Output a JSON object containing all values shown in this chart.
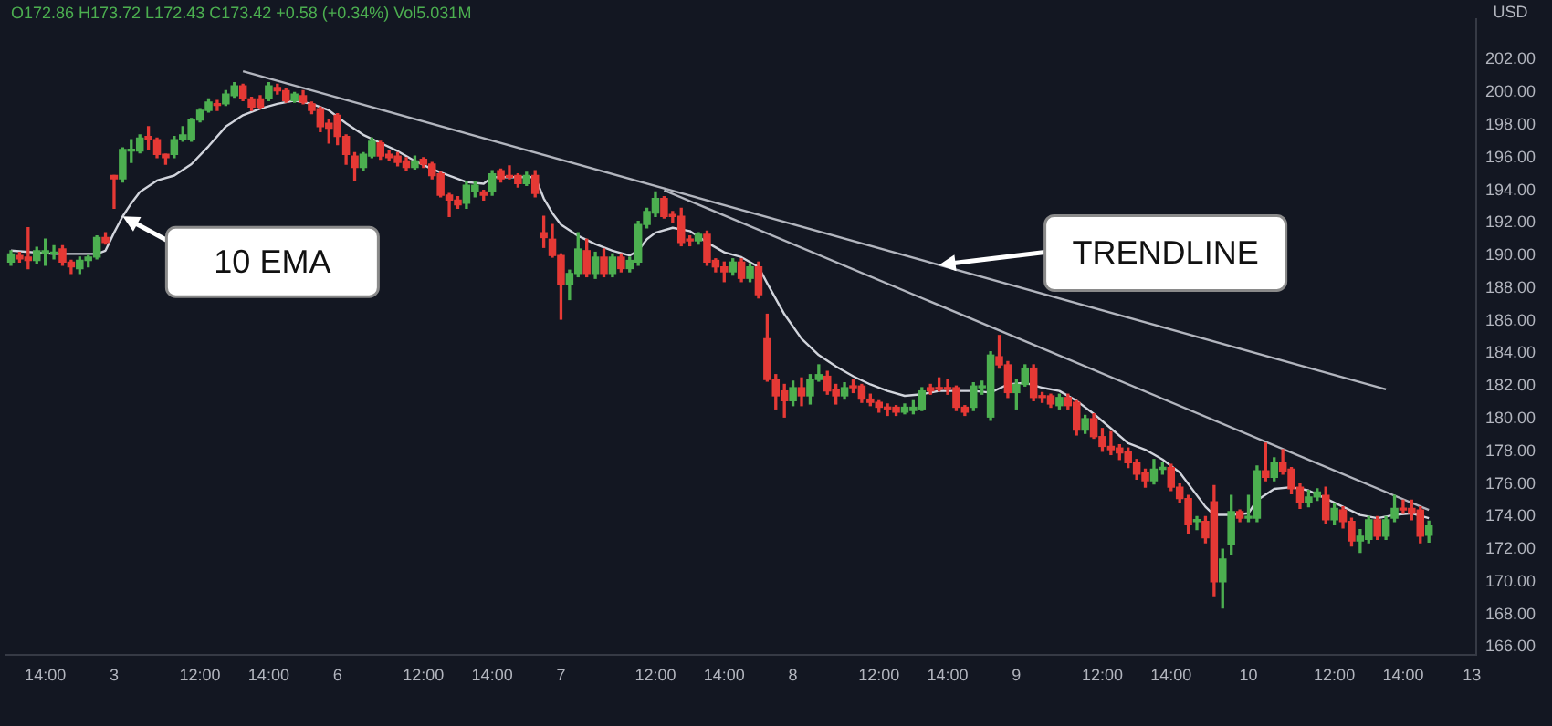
{
  "chart_data": {
    "type": "candlestick",
    "subtitle": "O172.86 H173.72 L172.43 C173.42 +0.58 (+0.34%) Vol5.031M",
    "ylabel": "USD",
    "marker": "none",
    "ylim": [
      165.5,
      204.5
    ],
    "yticks": [
      {
        "value": 166,
        "label": "166.00"
      },
      {
        "value": 168,
        "label": "168.00"
      },
      {
        "value": 170,
        "label": "170.00"
      },
      {
        "value": 172,
        "label": "172.00"
      },
      {
        "value": 174,
        "label": "174.00"
      },
      {
        "value": 176,
        "label": "176.00"
      },
      {
        "value": 178,
        "label": "178.00"
      },
      {
        "value": 180,
        "label": "180.00"
      },
      {
        "value": 182,
        "label": "182.00"
      },
      {
        "value": 184,
        "label": "184.00"
      },
      {
        "value": 186,
        "label": "186.00"
      },
      {
        "value": 188,
        "label": "188.00"
      },
      {
        "value": 190,
        "label": "190.00"
      },
      {
        "value": 192,
        "label": "192.00"
      },
      {
        "value": 194,
        "label": "194.00"
      },
      {
        "value": 196,
        "label": "196.00"
      },
      {
        "value": 198,
        "label": "198.00"
      },
      {
        "value": 200,
        "label": "200.00"
      },
      {
        "value": 202,
        "label": "202.00"
      }
    ],
    "categories": [
      null,
      null,
      null,
      null,
      "14:00",
      null,
      null,
      null,
      null,
      null,
      null,
      null,
      "3",
      null,
      null,
      null,
      null,
      null,
      null,
      null,
      null,
      null,
      "12:00",
      null,
      null,
      null,
      null,
      null,
      null,
      null,
      "14:00",
      null,
      null,
      null,
      null,
      null,
      null,
      null,
      "6",
      null,
      null,
      null,
      null,
      null,
      null,
      null,
      null,
      null,
      "12:00",
      null,
      null,
      null,
      null,
      null,
      null,
      null,
      "14:00",
      null,
      null,
      null,
      null,
      null,
      null,
      null,
      "7",
      null,
      null,
      null,
      null,
      null,
      null,
      null,
      null,
      null,
      null,
      "12:00",
      null,
      null,
      null,
      null,
      null,
      null,
      null,
      "14:00",
      null,
      null,
      null,
      null,
      null,
      null,
      null,
      "8",
      null,
      null,
      null,
      null,
      null,
      null,
      null,
      null,
      null,
      "12:00",
      null,
      null,
      null,
      null,
      null,
      null,
      null,
      "14:00",
      null,
      null,
      null,
      null,
      null,
      null,
      null,
      "9",
      null,
      null,
      null,
      null,
      null,
      null,
      null,
      null,
      null,
      "12:00",
      null,
      null,
      null,
      null,
      null,
      null,
      null,
      "14:00",
      null,
      null,
      null,
      null,
      null,
      null,
      null,
      null,
      "10",
      null,
      null,
      null,
      null,
      null,
      null,
      null,
      null,
      null,
      "12:00",
      null,
      null,
      null,
      null,
      null,
      null,
      null,
      "14:00",
      null,
      null,
      null,
      null,
      null,
      null,
      null,
      "13"
    ],
    "ohlc": [
      [
        189.6,
        190.3,
        189.4,
        190.1
      ],
      [
        190.0,
        190.2,
        189.6,
        189.8
      ],
      [
        189.9,
        191.7,
        189.2,
        189.7
      ],
      [
        189.7,
        190.5,
        189.5,
        190.3
      ],
      [
        190.1,
        191.0,
        189.4,
        190.3
      ],
      [
        190.1,
        190.6,
        189.8,
        190.2
      ],
      [
        190.4,
        190.6,
        189.4,
        189.6
      ],
      [
        189.6,
        189.7,
        188.9,
        189.3
      ],
      [
        189.2,
        189.9,
        188.9,
        189.7
      ],
      [
        189.7,
        190.0,
        189.3,
        189.9
      ],
      [
        189.9,
        191.2,
        189.8,
        191.1
      ],
      [
        191.1,
        191.4,
        190.7,
        190.8
      ],
      [
        194.9,
        194.9,
        192.9,
        194.7
      ],
      [
        194.7,
        196.6,
        194.5,
        196.5
      ],
      [
        196.4,
        197.1,
        195.7,
        196.5
      ],
      [
        196.4,
        197.4,
        196.3,
        197.2
      ],
      [
        197.3,
        197.9,
        196.5,
        197.1
      ],
      [
        197.1,
        197.2,
        196.0,
        196.2
      ],
      [
        196.2,
        196.2,
        195.6,
        196.0
      ],
      [
        196.2,
        197.3,
        196.0,
        197.1
      ],
      [
        197.1,
        197.9,
        197.0,
        197.4
      ],
      [
        197.1,
        198.4,
        197.0,
        198.3
      ],
      [
        198.3,
        199.0,
        198.2,
        198.9
      ],
      [
        198.9,
        199.6,
        198.8,
        199.4
      ],
      [
        199.3,
        199.5,
        198.9,
        199.2
      ],
      [
        199.3,
        200.1,
        199.2,
        199.9
      ],
      [
        199.8,
        200.6,
        199.7,
        200.4
      ],
      [
        200.4,
        200.5,
        199.5,
        199.6
      ],
      [
        199.6,
        199.7,
        198.9,
        199.1
      ],
      [
        199.6,
        199.8,
        199.0,
        199.1
      ],
      [
        199.6,
        200.6,
        199.5,
        200.4
      ],
      [
        200.3,
        200.5,
        199.9,
        200.1
      ],
      [
        200.1,
        200.2,
        199.4,
        199.5
      ],
      [
        199.5,
        200.0,
        199.4,
        199.9
      ],
      [
        199.8,
        200.1,
        199.3,
        199.4
      ],
      [
        199.3,
        199.4,
        198.7,
        198.9
      ],
      [
        199.0,
        199.1,
        197.6,
        197.9
      ],
      [
        198.1,
        198.3,
        196.9,
        197.8
      ],
      [
        198.6,
        198.7,
        196.8,
        197.3
      ],
      [
        197.3,
        197.4,
        195.6,
        196.2
      ],
      [
        196.1,
        196.3,
        194.6,
        195.4
      ],
      [
        195.4,
        196.3,
        195.2,
        196.2
      ],
      [
        196.1,
        197.2,
        196.0,
        197.0
      ],
      [
        196.9,
        197.0,
        195.9,
        196.1
      ],
      [
        196.2,
        196.4,
        195.8,
        196.0
      ],
      [
        196.1,
        196.3,
        195.5,
        195.7
      ],
      [
        195.8,
        196.0,
        195.2,
        195.4
      ],
      [
        195.4,
        196.1,
        195.3,
        195.8
      ],
      [
        195.9,
        196.0,
        195.4,
        195.6
      ],
      [
        195.6,
        195.7,
        194.7,
        194.9
      ],
      [
        195.0,
        195.1,
        193.6,
        193.7
      ],
      [
        193.7,
        193.8,
        192.4,
        193.4
      ],
      [
        193.4,
        193.6,
        192.9,
        193.1
      ],
      [
        193.2,
        194.5,
        192.9,
        194.3
      ],
      [
        193.9,
        194.5,
        193.6,
        194.3
      ],
      [
        193.9,
        194.0,
        193.4,
        193.7
      ],
      [
        193.9,
        195.2,
        193.7,
        195.0
      ],
      [
        195.2,
        195.3,
        194.5,
        194.7
      ],
      [
        194.9,
        195.5,
        194.7,
        194.8
      ],
      [
        194.9,
        195.0,
        194.2,
        194.4
      ],
      [
        194.4,
        195.1,
        194.3,
        194.9
      ],
      [
        194.9,
        195.2,
        193.6,
        193.8
      ],
      [
        191.4,
        192.4,
        190.5,
        191.1
      ],
      [
        191.0,
        191.9,
        189.9,
        190.0
      ],
      [
        190.0,
        190.1,
        186.1,
        188.2
      ],
      [
        188.2,
        189.1,
        187.3,
        188.9
      ],
      [
        188.9,
        191.4,
        188.7,
        190.4
      ],
      [
        190.3,
        191.0,
        188.7,
        188.9
      ],
      [
        188.9,
        190.2,
        188.6,
        189.9
      ],
      [
        189.9,
        190.4,
        188.7,
        188.9
      ],
      [
        188.9,
        190.1,
        188.7,
        189.9
      ],
      [
        189.9,
        190.1,
        189.0,
        189.2
      ],
      [
        189.2,
        189.9,
        189.0,
        189.7
      ],
      [
        189.6,
        192.1,
        189.4,
        191.9
      ],
      [
        191.9,
        192.9,
        191.7,
        192.7
      ],
      [
        192.6,
        193.9,
        192.4,
        193.5
      ],
      [
        193.5,
        193.6,
        192.3,
        192.4
      ],
      [
        192.5,
        192.7,
        192.0,
        192.4
      ],
      [
        192.4,
        192.9,
        190.6,
        190.8
      ],
      [
        191.0,
        191.2,
        190.6,
        190.9
      ],
      [
        190.9,
        191.4,
        190.7,
        191.3
      ],
      [
        191.3,
        191.5,
        189.4,
        189.6
      ],
      [
        189.7,
        189.8,
        189.0,
        189.3
      ],
      [
        189.3,
        189.6,
        188.4,
        189.0
      ],
      [
        189.0,
        189.8,
        188.8,
        189.6
      ],
      [
        189.6,
        189.8,
        188.4,
        188.6
      ],
      [
        188.6,
        189.5,
        188.4,
        189.3
      ],
      [
        189.3,
        189.6,
        187.4,
        187.6
      ],
      [
        184.9,
        186.4,
        182.3,
        182.4
      ],
      [
        182.4,
        182.7,
        180.6,
        181.4
      ],
      [
        181.7,
        182.1,
        180.1,
        181.1
      ],
      [
        181.1,
        182.3,
        180.8,
        181.9
      ],
      [
        181.9,
        182.5,
        180.8,
        181.4
      ],
      [
        181.4,
        182.7,
        180.9,
        182.4
      ],
      [
        182.4,
        183.3,
        182.3,
        182.7
      ],
      [
        182.6,
        182.9,
        181.5,
        181.7
      ],
      [
        181.8,
        182.1,
        180.9,
        181.4
      ],
      [
        181.4,
        182.2,
        181.2,
        181.9
      ],
      [
        182.0,
        182.4,
        181.6,
        181.9
      ],
      [
        182.0,
        182.1,
        181.0,
        181.2
      ],
      [
        181.2,
        181.5,
        180.8,
        181.0
      ],
      [
        181.0,
        181.1,
        180.4,
        180.7
      ],
      [
        180.7,
        180.9,
        180.2,
        180.6
      ],
      [
        180.7,
        180.8,
        180.2,
        180.4
      ],
      [
        180.4,
        180.9,
        180.3,
        180.7
      ],
      [
        180.5,
        181.1,
        180.3,
        180.7
      ],
      [
        180.6,
        181.9,
        180.5,
        181.7
      ],
      [
        181.9,
        182.1,
        181.5,
        181.7
      ],
      [
        181.9,
        182.5,
        181.7,
        181.8
      ],
      [
        181.9,
        182.4,
        181.5,
        181.8
      ],
      [
        181.9,
        182.0,
        180.5,
        180.7
      ],
      [
        180.7,
        180.8,
        180.2,
        180.4
      ],
      [
        180.7,
        182.2,
        180.5,
        182.0
      ],
      [
        181.9,
        182.3,
        181.5,
        181.9
      ],
      [
        180.1,
        184.1,
        179.9,
        183.9
      ],
      [
        183.8,
        185.1,
        183.1,
        183.3
      ],
      [
        183.3,
        183.5,
        181.3,
        181.6
      ],
      [
        181.6,
        182.4,
        180.6,
        182.1
      ],
      [
        182.1,
        183.3,
        182.0,
        183.1
      ],
      [
        183.1,
        183.3,
        181.1,
        181.3
      ],
      [
        181.4,
        181.6,
        181.0,
        181.3
      ],
      [
        181.4,
        181.5,
        180.7,
        180.9
      ],
      [
        180.8,
        181.5,
        180.6,
        181.3
      ],
      [
        181.3,
        181.5,
        180.6,
        180.8
      ],
      [
        181.0,
        181.1,
        179.0,
        179.3
      ],
      [
        179.3,
        180.2,
        179.1,
        180.0
      ],
      [
        180.0,
        180.3,
        178.8,
        178.9
      ],
      [
        178.9,
        179.4,
        178.0,
        178.3
      ],
      [
        178.3,
        179.2,
        177.8,
        178.1
      ],
      [
        178.2,
        178.4,
        177.5,
        177.9
      ],
      [
        178.0,
        178.2,
        177.0,
        177.3
      ],
      [
        177.3,
        177.5,
        176.3,
        176.6
      ],
      [
        176.7,
        176.9,
        175.8,
        176.2
      ],
      [
        176.2,
        177.5,
        176.0,
        176.9
      ],
      [
        176.9,
        177.3,
        176.6,
        176.9
      ],
      [
        177.0,
        177.2,
        175.6,
        175.8
      ],
      [
        175.8,
        176.0,
        174.9,
        175.1
      ],
      [
        175.1,
        175.3,
        173.0,
        173.5
      ],
      [
        173.7,
        174.0,
        173.2,
        173.7
      ],
      [
        173.7,
        174.0,
        172.4,
        172.7
      ],
      [
        174.9,
        175.9,
        169.1,
        170.0
      ],
      [
        170.0,
        172.0,
        168.4,
        171.4
      ],
      [
        172.3,
        175.3,
        171.7,
        174.3
      ],
      [
        174.3,
        174.4,
        173.7,
        173.9
      ],
      [
        173.9,
        175.3,
        173.7,
        173.9
      ],
      [
        173.9,
        177.1,
        173.7,
        176.8
      ],
      [
        176.8,
        178.5,
        176.2,
        176.4
      ],
      [
        176.4,
        177.6,
        176.2,
        177.3
      ],
      [
        177.3,
        178.1,
        176.6,
        176.8
      ],
      [
        176.9,
        177.0,
        175.4,
        175.7
      ],
      [
        175.8,
        176.0,
        174.5,
        174.9
      ],
      [
        174.9,
        175.6,
        174.6,
        175.2
      ],
      [
        175.2,
        175.7,
        175.0,
        175.5
      ],
      [
        175.3,
        175.8,
        173.6,
        173.8
      ],
      [
        173.8,
        174.8,
        173.5,
        174.5
      ],
      [
        174.4,
        174.6,
        173.3,
        173.7
      ],
      [
        173.7,
        173.9,
        172.2,
        172.5
      ],
      [
        172.5,
        173.2,
        171.8,
        172.8
      ],
      [
        172.6,
        174.0,
        172.4,
        173.8
      ],
      [
        173.8,
        174.0,
        172.6,
        172.8
      ],
      [
        172.8,
        174.0,
        172.6,
        173.8
      ],
      [
        173.9,
        175.3,
        173.7,
        174.5
      ],
      [
        174.5,
        175.0,
        174.2,
        174.4
      ],
      [
        174.5,
        175.0,
        173.8,
        174.2
      ],
      [
        174.4,
        174.6,
        172.4,
        172.8
      ],
      [
        172.86,
        173.72,
        172.43,
        173.42
      ],
      null,
      null,
      null,
      null,
      null
    ],
    "colors": [
      "#4caf50",
      "#e53935",
      "#e53935",
      "#4caf50",
      "#4caf50",
      "#4caf50",
      "#e53935",
      "#e53935",
      "#4caf50",
      "#4caf50",
      "#4caf50",
      "#e53935",
      "#e53935",
      "#4caf50",
      "#4caf50",
      "#4caf50",
      "#e53935",
      "#e53935",
      "#e53935",
      "#4caf50",
      "#4caf50",
      "#4caf50",
      "#4caf50",
      "#4caf50",
      "#e53935",
      "#4caf50",
      "#4caf50",
      "#e53935",
      "#e53935",
      "#e53935",
      "#4caf50",
      "#e53935",
      "#e53935",
      "#4caf50",
      "#e53935",
      "#e53935",
      "#e53935",
      "#e53935",
      "#e53935",
      "#e53935",
      "#e53935",
      "#4caf50",
      "#4caf50",
      "#e53935",
      "#e53935",
      "#e53935",
      "#e53935",
      "#4caf50",
      "#e53935",
      "#e53935",
      "#e53935",
      "#e53935",
      "#e53935",
      "#4caf50",
      "#4caf50",
      "#e53935",
      "#4caf50",
      "#e53935",
      "#e53935",
      "#e53935",
      "#4caf50",
      "#e53935",
      "#e53935",
      "#e53935",
      "#e53935",
      "#4caf50",
      "#4caf50",
      "#e53935",
      "#4caf50",
      "#e53935",
      "#4caf50",
      "#e53935",
      "#4caf50",
      "#4caf50",
      "#4caf50",
      "#4caf50",
      "#e53935",
      "#e53935",
      "#e53935",
      "#e53935",
      "#4caf50",
      "#e53935",
      "#e53935",
      "#e53935",
      "#4caf50",
      "#e53935",
      "#4caf50",
      "#e53935",
      "#e53935",
      "#e53935",
      "#e53935",
      "#4caf50",
      "#e53935",
      "#4caf50",
      "#4caf50",
      "#e53935",
      "#e53935",
      "#4caf50",
      "#e53935",
      "#e53935",
      "#e53935",
      "#e53935",
      "#e53935",
      "#e53935",
      "#4caf50",
      "#4caf50",
      "#4caf50",
      "#e53935",
      "#e53935",
      "#e53935",
      "#e53935",
      "#e53935",
      "#4caf50",
      "#4caf50",
      "#4caf50",
      "#e53935",
      "#e53935",
      "#4caf50",
      "#4caf50",
      "#e53935",
      "#e53935",
      "#e53935",
      "#4caf50",
      "#e53935",
      "#e53935",
      "#4caf50",
      "#e53935",
      "#e53935",
      "#e53935",
      "#e53935",
      "#e53935",
      "#e53935",
      "#e53935",
      "#4caf50",
      "#4caf50",
      "#e53935",
      "#e53935",
      "#e53935",
      "#4caf50",
      "#e53935",
      "#e53935",
      "#4caf50",
      "#4caf50",
      "#e53935",
      "#4caf50",
      "#4caf50",
      "#e53935",
      "#4caf50",
      "#e53935",
      "#e53935",
      "#e53935",
      "#4caf50",
      "#4caf50",
      "#e53935",
      "#4caf50",
      "#e53935",
      "#e53935",
      "#4caf50",
      "#4caf50",
      "#e53935",
      "#4caf50",
      "#4caf50",
      "#e53935",
      "#e53935",
      "#e53935",
      "#4caf50",
      null,
      null,
      null,
      null,
      null
    ],
    "series": [
      {
        "type": "line",
        "name": "10 EMA",
        "color": "#d1d4dc",
        "values": [
          190.3,
          null,
          null,
          null,
          null,
          190.1,
          null,
          null,
          null,
          null,
          190.1,
          190.3,
          191.4,
          192.4,
          193.2,
          193.9,
          null,
          194.6,
          null,
          194.9,
          null,
          195.6,
          null,
          196.7,
          null,
          197.9,
          null,
          198.6,
          null,
          199.0,
          null,
          199.3,
          null,
          199.5,
          null,
          199.3,
          null,
          198.9,
          null,
          198.1,
          null,
          197.4,
          null,
          196.9,
          null,
          196.4,
          null,
          195.8,
          null,
          195.3,
          null,
          194.9,
          null,
          194.5,
          null,
          194.4,
          194.8,
          null,
          194.8,
          null,
          null,
          194.8,
          193.5,
          192.6,
          191.9,
          null,
          191.2,
          null,
          190.7,
          null,
          190.3,
          null,
          190.0,
          190.3,
          191.0,
          191.4,
          null,
          191.7,
          null,
          191.5,
          null,
          190.8,
          null,
          190.2,
          null,
          189.9,
          null,
          189.3,
          188.3,
          null,
          186.4,
          null,
          184.9,
          null,
          183.9,
          null,
          183.2,
          null,
          182.6,
          null,
          182.1,
          null,
          181.7,
          null,
          181.4,
          null,
          181.5,
          null,
          181.7,
          null,
          181.7,
          null,
          181.7,
          null,
          181.6,
          null,
          182.1,
          null,
          182.2,
          null,
          181.9,
          null,
          181.7,
          null,
          181.1,
          null,
          180.3,
          null,
          179.4,
          null,
          178.5,
          null,
          178.1,
          null,
          177.5,
          null,
          176.7,
          null,
          175.3,
          174.6,
          174.1,
          null,
          174.1,
          null,
          174.2,
          175.0,
          null,
          175.7,
          null,
          175.8,
          null,
          175.6,
          null,
          175.1,
          null,
          174.6,
          null,
          174.1,
          null,
          173.9,
          null,
          174.1,
          null,
          174.2,
          null,
          173.9,
          null,
          null,
          null,
          null,
          null
        ]
      },
      {
        "type": "line",
        "name": "TRENDLINE",
        "color": "#b2b5be",
        "values": [
          null,
          null,
          null,
          null,
          null,
          null,
          null,
          null,
          null,
          null,
          null,
          null,
          null,
          null,
          null,
          null,
          null,
          null,
          null,
          null,
          null,
          null,
          null,
          null,
          null,
          null,
          null,
          201.3,
          null,
          null,
          null,
          null,
          null,
          null,
          null,
          null,
          null,
          null,
          null,
          null,
          null,
          null,
          null,
          null,
          null,
          null,
          null,
          null,
          null,
          null,
          null,
          null,
          null,
          null,
          null,
          null,
          null,
          null,
          null,
          null,
          null,
          null,
          null,
          null,
          null,
          null,
          null,
          null,
          null,
          null,
          null,
          null,
          null,
          null,
          null,
          null,
          null,
          null,
          null,
          null,
          null,
          null,
          null,
          null,
          null,
          null,
          null,
          null,
          null,
          null,
          null,
          null,
          null,
          null,
          null,
          null,
          null,
          null,
          null,
          null,
          null,
          null,
          null,
          null,
          null,
          null,
          null,
          null,
          null,
          null,
          null,
          null,
          null,
          null,
          null,
          null,
          null,
          null,
          null,
          null,
          null,
          null,
          null,
          null,
          null,
          null,
          null,
          null,
          null,
          null,
          null,
          null,
          null,
          null,
          null,
          null,
          null,
          null,
          null,
          null,
          null,
          null,
          null,
          null,
          null,
          null,
          null,
          null,
          null,
          null,
          null,
          null,
          null,
          null,
          null,
          null,
          null,
          null,
          null,
          null,
          181.8,
          null,
          null,
          null,
          null,
          null,
          null,
          null,
          null,
          null,
          null
        ]
      },
      {
        "type": "line",
        "color": "#b2b5be",
        "values": [
          null,
          null,
          null,
          null,
          null,
          null,
          null,
          null,
          null,
          null,
          null,
          null,
          null,
          null,
          null,
          null,
          null,
          null,
          null,
          null,
          null,
          null,
          null,
          null,
          null,
          null,
          null,
          null,
          null,
          null,
          null,
          null,
          null,
          null,
          null,
          null,
          null,
          null,
          null,
          null,
          null,
          null,
          null,
          null,
          null,
          null,
          null,
          null,
          null,
          null,
          null,
          null,
          null,
          null,
          null,
          null,
          null,
          null,
          null,
          null,
          null,
          null,
          null,
          null,
          null,
          null,
          null,
          null,
          null,
          null,
          null,
          null,
          null,
          null,
          null,
          null,
          194.0,
          null,
          null,
          null,
          null,
          null,
          null,
          null,
          null,
          null,
          null,
          null,
          null,
          null,
          null,
          null,
          null,
          null,
          null,
          null,
          null,
          null,
          null,
          null,
          null,
          null,
          null,
          null,
          null,
          null,
          null,
          null,
          null,
          null,
          null,
          null,
          null,
          null,
          null,
          null,
          null,
          null,
          null,
          null,
          null,
          null,
          null,
          null,
          null,
          null,
          null,
          null,
          null,
          null,
          null,
          null,
          null,
          null,
          null,
          null,
          null,
          null,
          null,
          null,
          null,
          null,
          null,
          null,
          null,
          null,
          null,
          null,
          null,
          null,
          null,
          null,
          null,
          null,
          null,
          null,
          null,
          null,
          null,
          null,
          null,
          null,
          null,
          null,
          null,
          174.4,
          null,
          null,
          null,
          null,
          null
        ]
      }
    ]
  }
}
